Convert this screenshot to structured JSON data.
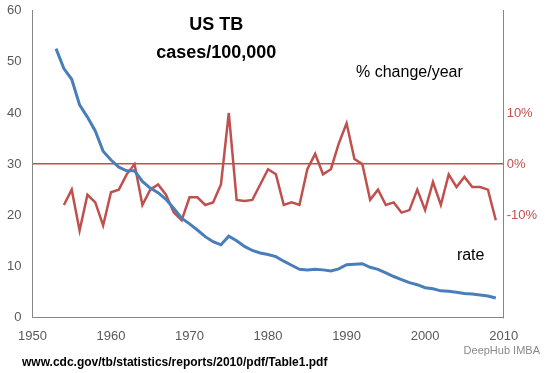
{
  "chart_data": {
    "type": "line",
    "title": "US TB",
    "subtitle": "cases/100,000",
    "annotations": [
      "www.cdc.gov/tb/statistics/reports/2010/pdf/Table1.pdf",
      "DeepHub IMBA"
    ],
    "x": [
      1953,
      1954,
      1955,
      1956,
      1957,
      1958,
      1959,
      1960,
      1961,
      1962,
      1963,
      1964,
      1965,
      1966,
      1967,
      1968,
      1969,
      1970,
      1971,
      1972,
      1973,
      1974,
      1975,
      1976,
      1977,
      1978,
      1979,
      1980,
      1981,
      1982,
      1983,
      1984,
      1985,
      1986,
      1987,
      1988,
      1989,
      1990,
      1991,
      1992,
      1993,
      1994,
      1995,
      1996,
      1997,
      1998,
      1999,
      2000,
      2001,
      2002,
      2003,
      2004,
      2005,
      2006,
      2007,
      2008,
      2009
    ],
    "series": [
      {
        "name": "rate",
        "color": "#4a7ebb",
        "values": [
          52.6,
          48.7,
          46.6,
          41.6,
          39.2,
          36.5,
          32.5,
          30.8,
          29.4,
          28.7,
          28.7,
          26.6,
          25.3,
          24.4,
          23.1,
          21.3,
          19.4,
          18.3,
          17.1,
          15.8,
          14.8,
          14.2,
          15.9,
          15.0,
          13.9,
          13.1,
          12.6,
          12.3,
          11.9,
          11.0,
          10.2,
          9.4,
          9.3,
          9.4,
          9.3,
          9.1,
          9.5,
          10.3,
          10.4,
          10.5,
          9.8,
          9.4,
          8.7,
          8.0,
          7.4,
          6.8,
          6.4,
          5.8,
          5.6,
          5.2,
          5.1,
          4.9,
          4.7,
          4.6,
          4.4,
          4.2,
          3.8
        ]
      },
      {
        "name": "% change/year",
        "color": "#c0504d",
        "axis": "y2",
        "values": [
          null,
          -8,
          -5,
          -13,
          -6,
          -7.5,
          -12,
          -5.5,
          -5,
          -2,
          0,
          -8,
          -5,
          -4,
          -6,
          -9.5,
          -11,
          -6.5,
          -6.5,
          -8,
          -7.5,
          -4,
          10,
          -7,
          -7.2,
          -7,
          -4,
          -1,
          -2,
          -8,
          -7.5,
          -8,
          -1,
          2,
          -2,
          -1,
          4,
          8,
          1,
          0,
          -7,
          -5,
          -8,
          -7.5,
          -9.5,
          -9,
          -5,
          -9,
          -3.5,
          -8,
          -2,
          -4.5,
          -2.5,
          -4.5,
          -4.5,
          -5,
          -11
        ]
      }
    ],
    "xlim": [
      1950,
      2010
    ],
    "xticks": [
      1950,
      1960,
      1970,
      1980,
      1990,
      2000,
      2010
    ],
    "ylim": [
      0,
      60
    ],
    "yticks": [
      0,
      10,
      20,
      30,
      40,
      50,
      60
    ],
    "y2lim": [
      -30,
      30
    ],
    "y2ticks": [
      {
        "value": -10,
        "label": "-10%"
      },
      {
        "value": 0,
        "label": "0%"
      },
      {
        "value": 10,
        "label": "10%"
      }
    ]
  }
}
